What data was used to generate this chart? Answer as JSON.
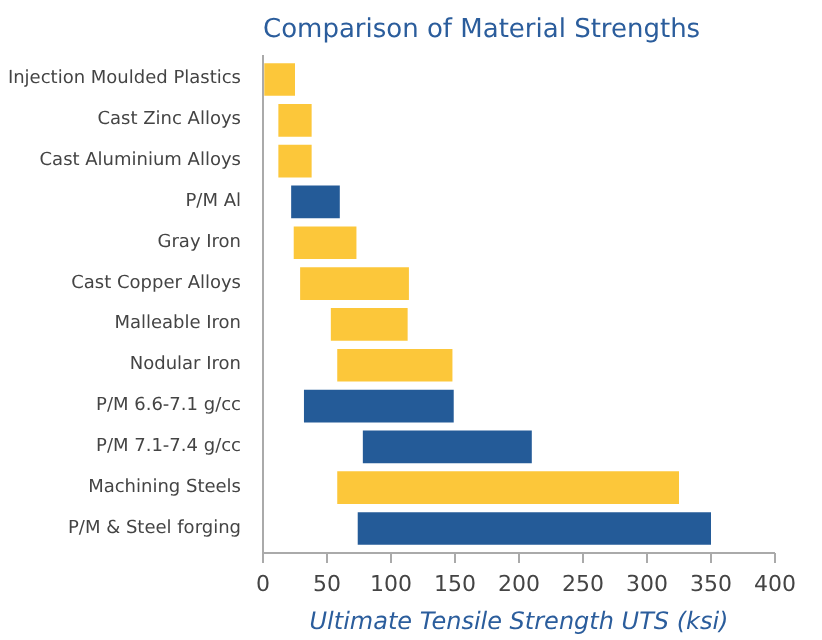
{
  "chart_data": {
    "type": "bar",
    "orientation": "horizontal",
    "title": "Comparison of Material Strengths",
    "xlabel": "Ultimate Tensile Strength UTS (ksi)",
    "categories": [
      "Injection Moulded Plastics",
      "Cast Zinc Alloys",
      "Cast Aluminium Alloys",
      "P/M Al",
      "Gray Iron",
      "Cast Copper Alloys",
      "Malleable Iron",
      "Nodular Iron",
      "P/M 6.6-7.1 g/cc",
      "P/M 7.1-7.4 g/cc",
      "Machining Steels",
      "P/M & Steel forging"
    ],
    "base": [
      1,
      12,
      12,
      22,
      24,
      29,
      53,
      58,
      32,
      78,
      58,
      74
    ],
    "values": [
      24,
      26,
      26,
      38,
      49,
      85,
      60,
      90,
      117,
      132,
      267,
      276
    ],
    "colors": [
      "#fcc73a",
      "#fcc73a",
      "#fcc73a",
      "#245b98",
      "#fcc73a",
      "#fcc73a",
      "#fcc73a",
      "#fcc73a",
      "#245b98",
      "#245b98",
      "#fcc73a",
      "#245b98"
    ],
    "xlim": [
      0,
      400
    ],
    "xticks": [
      0,
      50,
      100,
      150,
      200,
      250,
      300,
      350,
      400
    ],
    "grid": false
  }
}
